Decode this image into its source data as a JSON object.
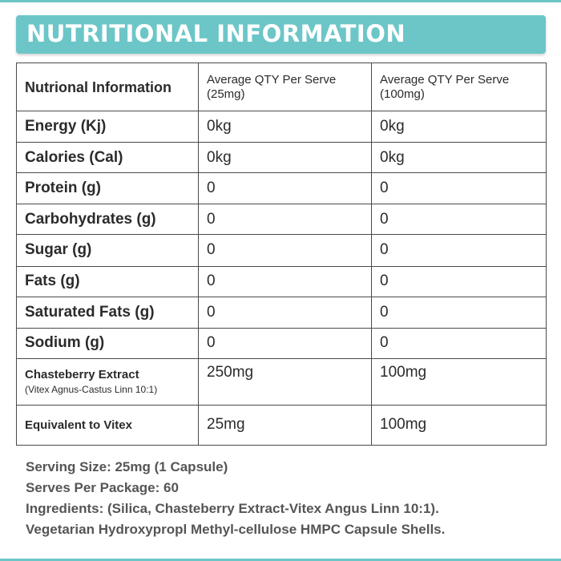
{
  "header": {
    "title": "NUTRITIONAL INFORMATION"
  },
  "table": {
    "columns": [
      "Nutrional Information",
      "Average QTY Per Serve (25mg)",
      "Average QTY Per Serve (100mg)"
    ],
    "rows": [
      {
        "label": "Energy (Kj)",
        "v1": "0kg",
        "v2": "0kg"
      },
      {
        "label": "Calories (Cal)",
        "v1": "0kg",
        "v2": "0kg"
      },
      {
        "label": "Protein (g)",
        "v1": "0",
        "v2": "0"
      },
      {
        "label": "Carbohydrates (g)",
        "v1": "0",
        "v2": "0"
      },
      {
        "label": "Sugar (g)",
        "v1": "0",
        "v2": "0"
      },
      {
        "label": "Fats (g)",
        "v1": "0",
        "v2": "0"
      },
      {
        "label": "Saturated Fats (g)",
        "v1": "0",
        "v2": "0"
      },
      {
        "label": "Sodium (g)",
        "v1": "0",
        "v2": "0"
      },
      {
        "label": "Chasteberry Extract",
        "sublabel": "(Vitex Agnus-Castus Linn 10:1)",
        "v1": "250mg",
        "v2": "100mg"
      },
      {
        "label": "Equivalent to Vitex",
        "v1": "25mg",
        "v2": "100mg"
      }
    ]
  },
  "footer": {
    "serving_size": "Serving Size: 25mg (1 Capsule)",
    "serves_per_package": "Serves Per Package: 60",
    "ingredients_1": "Ingredients: (Silica, Chasteberry Extract-Vitex Angus Linn 10:1).",
    "ingredients_2": "Vegetarian Hydroxypropl Methyl-cellulose HMPC Capsule Shells."
  },
  "colors": {
    "accent": "#6cc6c8",
    "border": "#4a4a4a",
    "text": "#2b2b2b",
    "footer_text": "#555555"
  }
}
